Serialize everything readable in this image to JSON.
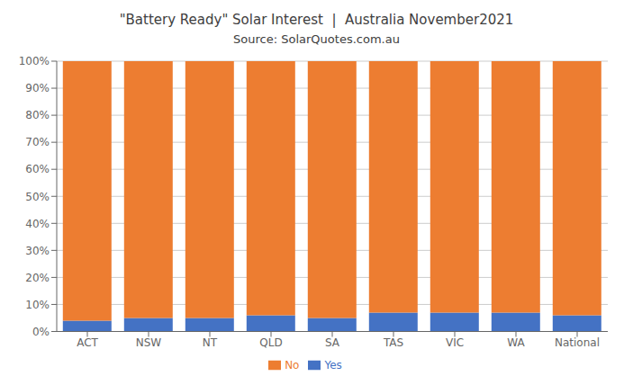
{
  "chart_data": {
    "type": "bar",
    "title": "\"Battery Ready\" Solar Interest  |  Australia November2021",
    "subtitle": "Source: SolarQuotes.com.au",
    "categories": [
      "ACT",
      "NSW",
      "NT",
      "QLD",
      "SA",
      "TAS",
      "VIC",
      "WA",
      "National"
    ],
    "series": [
      {
        "name": "Yes",
        "color": "#4472C4",
        "values": [
          4,
          5,
          5,
          6,
          5,
          7,
          7,
          7,
          6
        ]
      },
      {
        "name": "No",
        "color": "#ED7D31",
        "values": [
          96,
          95,
          95,
          94,
          95,
          93,
          93,
          93,
          94
        ]
      }
    ],
    "stacked": true,
    "ylim": [
      0,
      100
    ],
    "yticks": [
      {
        "value": 0,
        "label": "0%"
      },
      {
        "value": 10,
        "label": "10%"
      },
      {
        "value": 20,
        "label": "20%"
      },
      {
        "value": 30,
        "label": "30%"
      },
      {
        "value": 40,
        "label": "40%"
      },
      {
        "value": 50,
        "label": "50%"
      },
      {
        "value": 60,
        "label": "60%"
      },
      {
        "value": 70,
        "label": "70%"
      },
      {
        "value": 80,
        "label": "80%"
      },
      {
        "value": 90,
        "label": "90%"
      },
      {
        "value": 100,
        "label": "100%"
      }
    ],
    "grid": true,
    "legend": "bottom"
  }
}
